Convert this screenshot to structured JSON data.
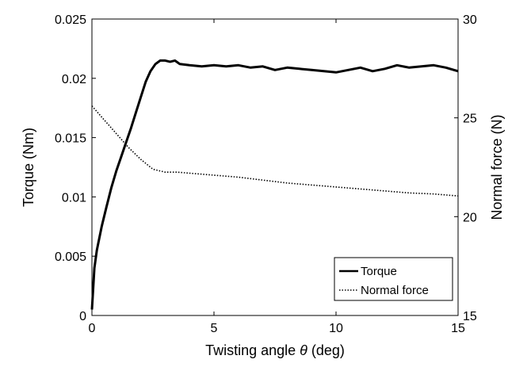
{
  "chart_data": {
    "type": "line",
    "xlabel": "Twisting angle θ (deg)",
    "xlabel_prefix": "Twisting angle ",
    "xlabel_symbol": "θ",
    "xlabel_suffix": " (deg)",
    "ylabel": "Torque (Nm)",
    "y2label": "Normal force (N)",
    "xlim": [
      0,
      15
    ],
    "ylim": [
      0,
      0.025
    ],
    "y2lim": [
      15,
      30
    ],
    "xticks": [
      "0",
      "5",
      "10",
      "15"
    ],
    "yticks": [
      "0",
      "0.005",
      "0.01",
      "0.015",
      "0.02",
      "0.025"
    ],
    "y2ticks": [
      "15",
      "20",
      "25",
      "30"
    ],
    "grid": false,
    "legend_position": "bottom-right",
    "series": [
      {
        "name": "Torque",
        "axis": "left",
        "line_style": "solid",
        "color": "#000000",
        "x": [
          0,
          0.1,
          0.2,
          0.4,
          0.6,
          0.8,
          1.0,
          1.2,
          1.4,
          1.6,
          1.8,
          2.0,
          2.2,
          2.4,
          2.6,
          2.8,
          3.0,
          3.2,
          3.4,
          3.6,
          4.0,
          4.5,
          5.0,
          5.5,
          6.0,
          6.5,
          7.0,
          7.5,
          8.0,
          8.5,
          9.0,
          9.5,
          10.0,
          10.5,
          11.0,
          11.5,
          12.0,
          12.5,
          13.0,
          13.5,
          14.0,
          14.5,
          15.0
        ],
        "y": [
          0.0005,
          0.004,
          0.0055,
          0.0075,
          0.0092,
          0.0108,
          0.0122,
          0.0134,
          0.0146,
          0.0158,
          0.0171,
          0.0184,
          0.0197,
          0.0206,
          0.0212,
          0.0215,
          0.0215,
          0.0214,
          0.0215,
          0.0212,
          0.0211,
          0.021,
          0.0211,
          0.021,
          0.0211,
          0.0209,
          0.021,
          0.0207,
          0.0209,
          0.0208,
          0.0207,
          0.0206,
          0.0205,
          0.0207,
          0.0209,
          0.0206,
          0.0208,
          0.0211,
          0.0209,
          0.021,
          0.0211,
          0.0209,
          0.0206
        ]
      },
      {
        "name": "Normal force",
        "axis": "right",
        "line_style": "dotted",
        "color": "#000000",
        "x": [
          0,
          0.5,
          1.0,
          1.5,
          2.0,
          2.5,
          3.0,
          3.5,
          4.0,
          5.0,
          6.0,
          7.0,
          8.0,
          9.0,
          10.0,
          11.0,
          12.0,
          13.0,
          14.0,
          15.0
        ],
        "y": [
          25.6,
          24.9,
          24.2,
          23.5,
          22.9,
          22.4,
          22.25,
          22.25,
          22.2,
          22.1,
          22.0,
          21.85,
          21.7,
          21.6,
          21.5,
          21.4,
          21.3,
          21.2,
          21.15,
          21.05
        ]
      }
    ]
  }
}
